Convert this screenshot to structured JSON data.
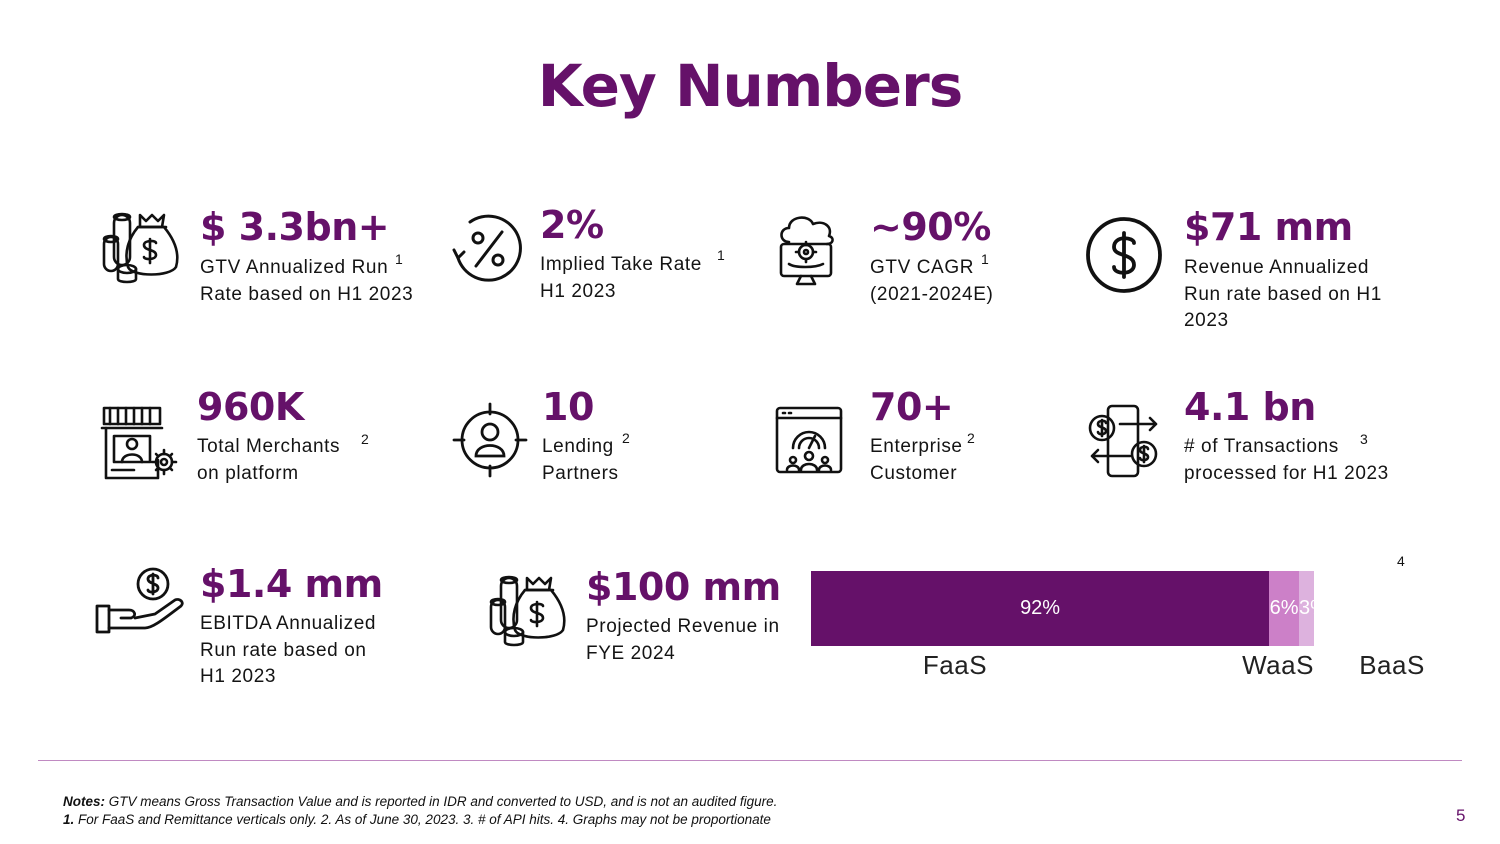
{
  "title": "Key Numbers",
  "colors": {
    "primary": "#651169",
    "mid": "#cc80c8",
    "light": "#ddb2de"
  },
  "metrics": [
    {
      "icon": "money-bag-coins-icon",
      "value": "$ 3.3bn+",
      "lines": [
        "GTV Annualized Run",
        "Rate based on H1 2023"
      ],
      "sup": "1"
    },
    {
      "icon": "percent-cycle-icon",
      "value": "2%",
      "lines": [
        "Implied Take Rate",
        "H1 2023"
      ],
      "sup": "1"
    },
    {
      "icon": "cloud-gear-monitor-icon",
      "value": "~90%",
      "lines": [
        "GTV CAGR",
        "(2021-2024E)"
      ],
      "sup": "1"
    },
    {
      "icon": "dollar-circle-icon",
      "value": "$71 mm",
      "lines": [
        "Revenue Annualized",
        "Run rate based on H1",
        "2023"
      ],
      "sup": ""
    },
    {
      "icon": "storefront-gear-icon",
      "value": "960K",
      "lines": [
        "Total Merchants",
        "on platform"
      ],
      "sup": "2"
    },
    {
      "icon": "target-person-icon",
      "value": "10",
      "lines": [
        "Lending",
        "Partners"
      ],
      "sup": "2"
    },
    {
      "icon": "dashboard-audience-icon",
      "value": "70+",
      "lines": [
        "Enterprise",
        "Customer"
      ],
      "sup": "2"
    },
    {
      "icon": "phone-transfer-icon",
      "value": "4.1 bn",
      "lines": [
        "# of Transactions",
        "processed for H1 2023"
      ],
      "sup": "3"
    },
    {
      "icon": "hand-coin-icon",
      "value": "$1.4 mm",
      "lines": [
        "EBITDA Annualized",
        "Run rate based on",
        "H1 2023"
      ],
      "sup": ""
    },
    {
      "icon": "money-bag-coins-icon",
      "value": "$100 mm",
      "lines": [
        "Projected Revenue in",
        "FYE 2024"
      ],
      "sup": ""
    }
  ],
  "chart_data": {
    "type": "bar",
    "orientation": "horizontal-stacked",
    "categories": [
      "FaaS",
      "WaaS",
      "BaaS"
    ],
    "values": [
      92,
      6,
      3
    ],
    "labels": [
      "92%",
      "6%",
      "3%"
    ],
    "colors": [
      "#651169",
      "#cc80c8",
      "#ddb2de"
    ],
    "footnote_mark": "4"
  },
  "notes": {
    "bold": "Notes:",
    "line1": " GTV means Gross Transaction Value and is reported in IDR and converted to USD, and is not an audited figure.",
    "line2_bold": "1.",
    "line2": " For FaaS and Remittance verticals only. 2. As of June 30, 2023. 3. # of API hits. 4. Graphs may not be proportionate"
  },
  "page_number": "5"
}
